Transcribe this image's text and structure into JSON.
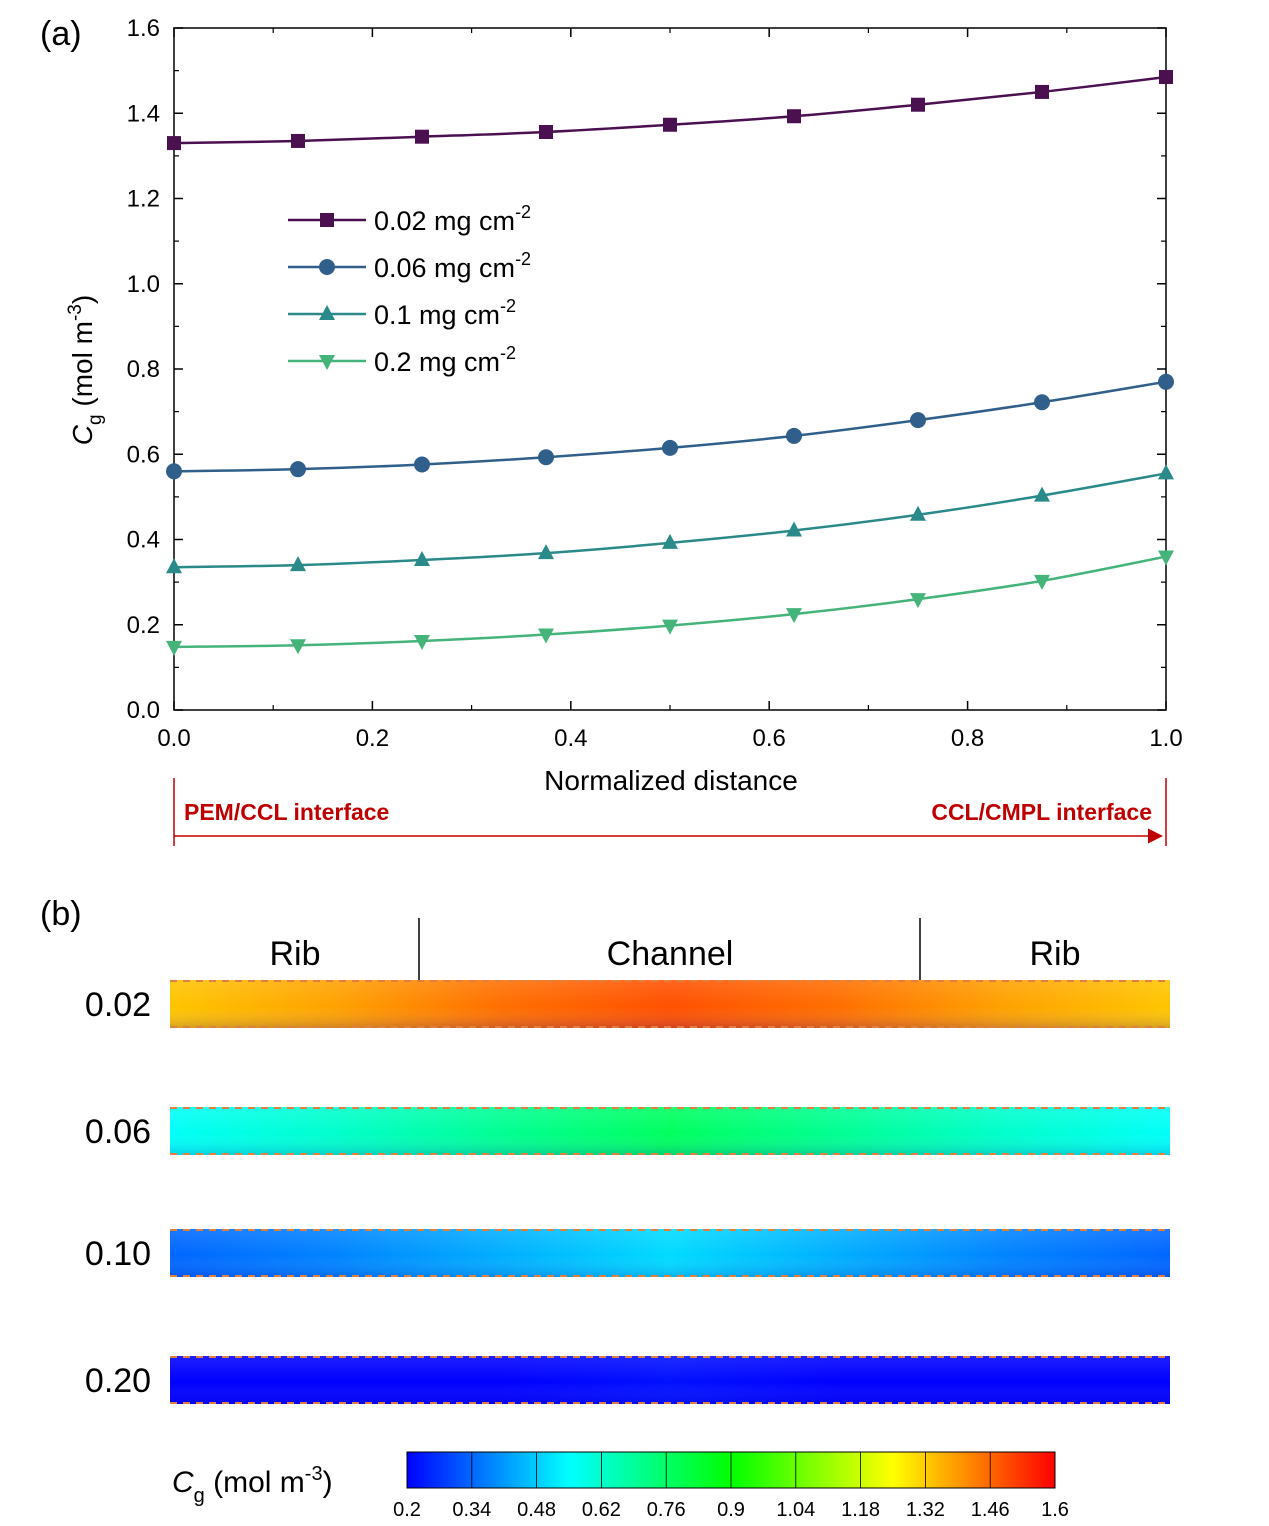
{
  "panel_a": {
    "tag": "(a)"
  },
  "panel_b": {
    "tag": "(b)",
    "regions": [
      "Rib",
      "Channel",
      "Rib"
    ],
    "rows": [
      {
        "label": "0.02",
        "profile": [
          1.33,
          1.38,
          1.45,
          1.49,
          1.45,
          1.38,
          1.33
        ]
      },
      {
        "label": "0.06",
        "profile": [
          0.56,
          0.62,
          0.7,
          0.77,
          0.7,
          0.62,
          0.56
        ]
      },
      {
        "label": "0.10",
        "profile": [
          0.34,
          0.38,
          0.44,
          0.5,
          0.44,
          0.38,
          0.34
        ]
      },
      {
        "label": "0.20",
        "profile": [
          0.15,
          0.17,
          0.2,
          0.22,
          0.2,
          0.17,
          0.15
        ]
      }
    ],
    "colorbar": {
      "label_main": "C",
      "label_sub": "g",
      "label_unit": " (mol m",
      "label_sup": "-3",
      "label_close": ")",
      "min": 0.2,
      "max": 1.6,
      "ticks": [
        "0.2",
        "0.34",
        "0.48",
        "0.62",
        "0.76",
        "0.9",
        "1.04",
        "1.18",
        "1.32",
        "1.46",
        "1.6"
      ],
      "colors": [
        "#0000ff",
        "#0080ff",
        "#00ffff",
        "#00ff80",
        "#00ff00",
        "#80ff00",
        "#ffff00",
        "#ff8000",
        "#ff0000"
      ]
    }
  },
  "arrow": {
    "left_label": "PEM/CCL interface",
    "right_label": "CCL/CMPL interface",
    "color": "#c00000"
  },
  "chart_data": {
    "type": "line",
    "xlabel": "Normalized distance",
    "ylabel_main": "C",
    "ylabel_sub": "g",
    "ylabel_unit": " (mol m",
    "ylabel_sup": "-3",
    "ylabel_close": ")",
    "xlim": [
      0.0,
      1.0
    ],
    "ylim": [
      0.0,
      1.6
    ],
    "xticks": [
      "0.0",
      "0.2",
      "0.4",
      "0.6",
      "0.8",
      "1.0"
    ],
    "yticks": [
      "0.0",
      "0.2",
      "0.4",
      "0.6",
      "0.8",
      "1.0",
      "1.2",
      "1.4",
      "1.6"
    ],
    "legend_position": "upper-left",
    "x": [
      0.0,
      0.125,
      0.25,
      0.375,
      0.5,
      0.625,
      0.75,
      0.875,
      1.0
    ],
    "series": [
      {
        "name": "0.02 mg cm",
        "sup": "-2",
        "color": "#4b1050",
        "marker": "square",
        "values": [
          1.33,
          1.335,
          1.345,
          1.356,
          1.373,
          1.393,
          1.42,
          1.45,
          1.485
        ]
      },
      {
        "name": "0.06 mg cm",
        "sup": "-2",
        "color": "#2f5f8a",
        "marker": "circle",
        "values": [
          0.56,
          0.565,
          0.576,
          0.593,
          0.615,
          0.643,
          0.68,
          0.722,
          0.77
        ]
      },
      {
        "name": "0.1 mg cm",
        "sup": "-2",
        "color": "#2a8a8a",
        "marker": "triangle-up",
        "values": [
          0.335,
          0.34,
          0.352,
          0.368,
          0.392,
          0.421,
          0.458,
          0.503,
          0.555
        ]
      },
      {
        "name": "0.2 mg cm",
        "sup": "-2",
        "color": "#45b47a",
        "marker": "triangle-down",
        "values": [
          0.148,
          0.152,
          0.162,
          0.177,
          0.198,
          0.225,
          0.26,
          0.303,
          0.36
        ]
      }
    ]
  }
}
